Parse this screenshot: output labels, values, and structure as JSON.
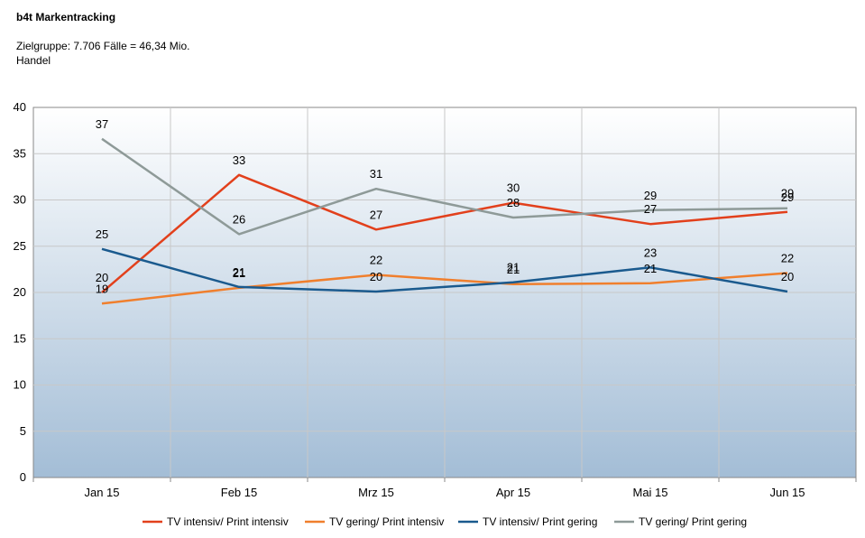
{
  "header": {
    "title": "b4t Markentracking",
    "line1": "Zielgruppe: 7.706 Fälle = 46,34 Mio.",
    "line2": "Handel"
  },
  "chart_data": {
    "type": "line",
    "categories": [
      "Jan 15",
      "Feb 15",
      "Mrz 15",
      "Apr 15",
      "Mai 15",
      "Jun 15"
    ],
    "ylim": [
      0,
      40
    ],
    "yticks": [
      0,
      5,
      10,
      15,
      20,
      25,
      30,
      35,
      40
    ],
    "grid": true,
    "legend_position": "bottom",
    "series": [
      {
        "name": "TV intensiv/ Print intensiv",
        "color": "#e2401c",
        "values": [
          20,
          32.7,
          26.8,
          29.7,
          27.4,
          28.7
        ],
        "labels": [
          "20",
          "33",
          "27",
          "30",
          "27",
          "29"
        ]
      },
      {
        "name": "TV gering/ Print intensiv",
        "color": "#f07f2d",
        "values": [
          18.8,
          20.5,
          21.9,
          20.9,
          21.0,
          22.1
        ],
        "labels": [
          "19",
          "21",
          "22",
          "21",
          "21",
          "22"
        ]
      },
      {
        "name": "TV intensiv/ Print gering",
        "color": "#1a5a8e",
        "values": [
          24.7,
          20.6,
          20.1,
          21.1,
          22.7,
          20.1
        ],
        "labels": [
          "25",
          "21",
          "20",
          "21",
          "23",
          "20"
        ]
      },
      {
        "name": "TV gering/ Print gering",
        "color": "#8e9a98",
        "values": [
          36.6,
          26.3,
          31.2,
          28.1,
          28.9,
          29.1
        ],
        "labels": [
          "37",
          "26",
          "31",
          "28",
          "29",
          "29"
        ]
      }
    ]
  }
}
